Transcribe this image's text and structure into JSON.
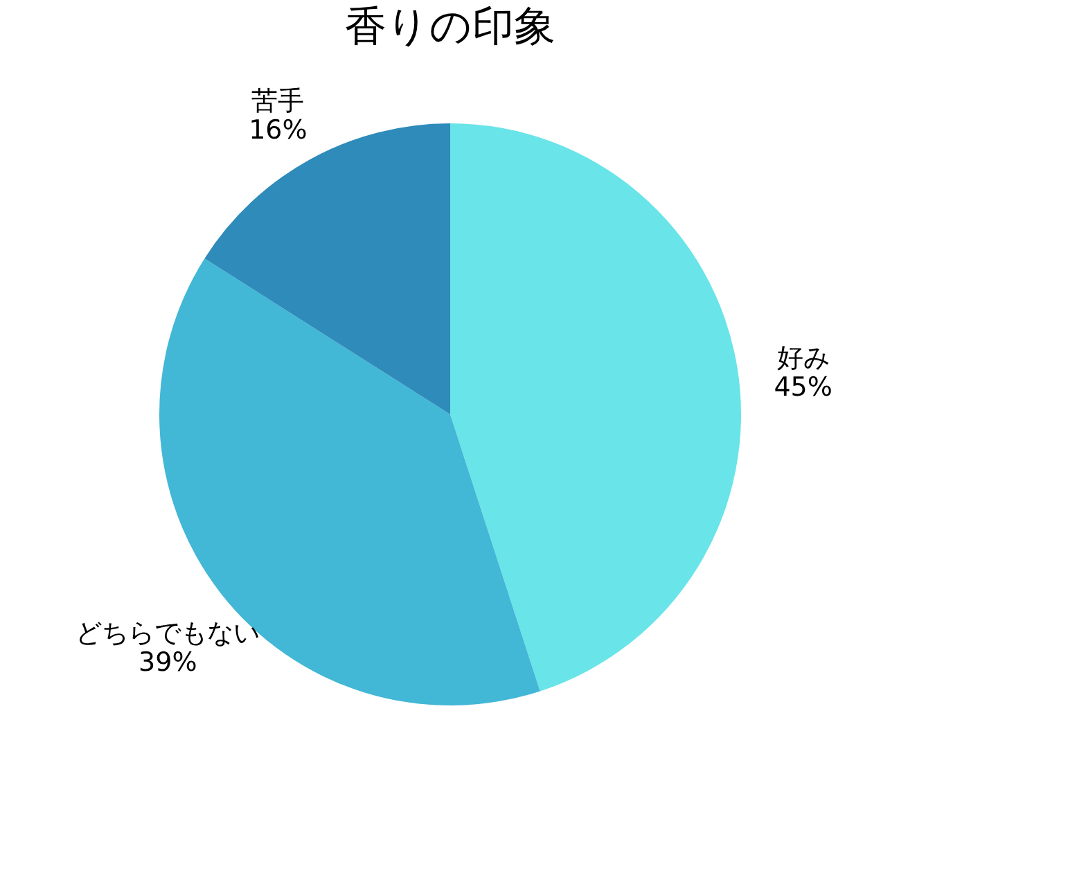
{
  "chart_data": {
    "type": "pie",
    "title": "香りの印象",
    "categories": [
      "好み",
      "どちらでもない",
      "苦手"
    ],
    "values": [
      45,
      39,
      16
    ],
    "value_labels": [
      "45%",
      "39%",
      "16%"
    ],
    "colors": [
      "#69e4e8",
      "#42b7d6",
      "#2e8bba"
    ],
    "legend": false
  }
}
